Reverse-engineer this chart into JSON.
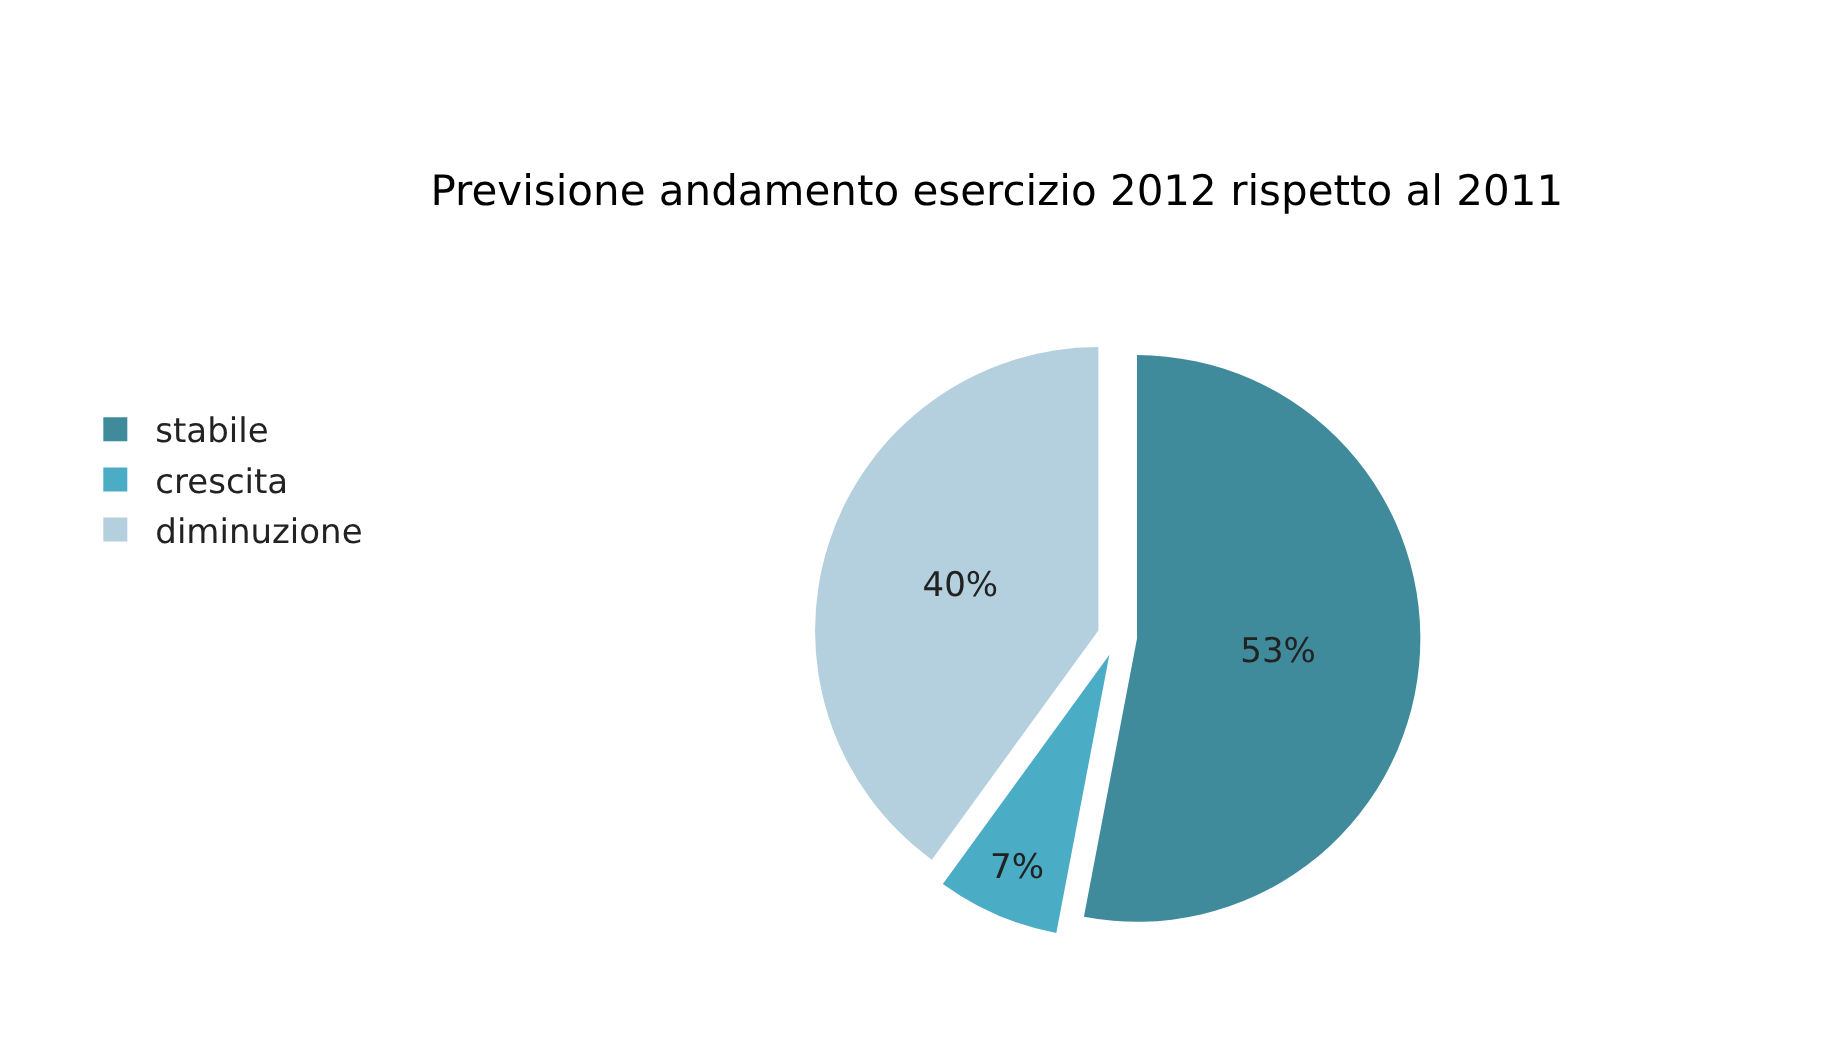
{
  "chart_data": {
    "type": "pie",
    "title": "Previsione andamento esercizio 2012 rispetto al 2011",
    "categories": [
      "stabile",
      "crescita",
      "diminuzione"
    ],
    "values": [
      53,
      7,
      40
    ],
    "colors": [
      "#3f8b9c",
      "#4bacc6",
      "#b4d0de"
    ],
    "value_labels": [
      "53%",
      "7%",
      "40%"
    ],
    "legend": "left"
  }
}
